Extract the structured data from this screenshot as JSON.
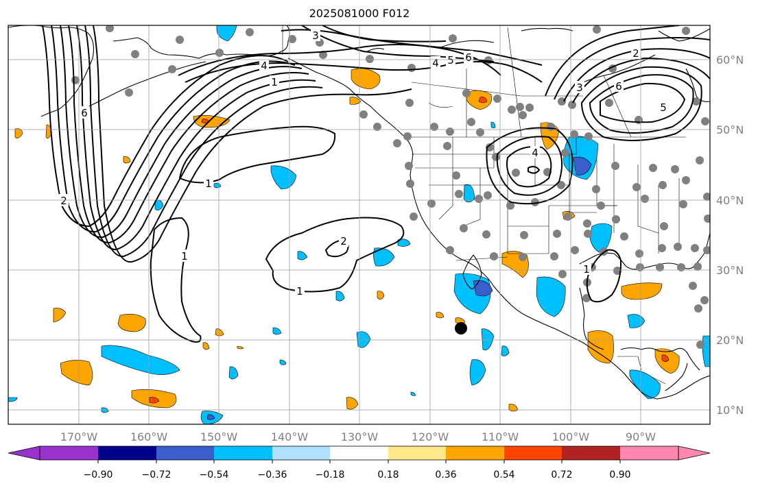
{
  "title": "2025081000 F012",
  "lon_labels": [
    "170°W",
    "160°W",
    "150°W",
    "140°W",
    "130°W",
    "120°W",
    "110°W",
    "100°W",
    "90°W"
  ],
  "lat_labels": [
    "60°N",
    "50°N",
    "40°N",
    "30°N",
    "20°N",
    "10°N"
  ],
  "colorbar": {
    "tick_labels": [
      "−0.90",
      "−0.72",
      "−0.54",
      "−0.36",
      "−0.18",
      "0.18",
      "0.36",
      "0.54",
      "0.72",
      "0.90"
    ],
    "colors": [
      "#9932cc",
      "#00008b",
      "#3a5fcd",
      "#00bfff",
      "#b0e0ff",
      "#ffffff",
      "#ffe98a",
      "#ffa500",
      "#ff4500",
      "#b22222",
      "#ff88b0"
    ]
  },
  "contour_labels": [
    "1",
    "1",
    "1",
    "1",
    "2",
    "2",
    "2",
    "3",
    "3",
    "4",
    "4",
    "4",
    "5",
    "5",
    "6",
    "6",
    "6",
    "1"
  ],
  "colors": {
    "contour": "#000000",
    "station": "#808080",
    "grid": "#9e9e9e",
    "marker": "#000000"
  }
}
